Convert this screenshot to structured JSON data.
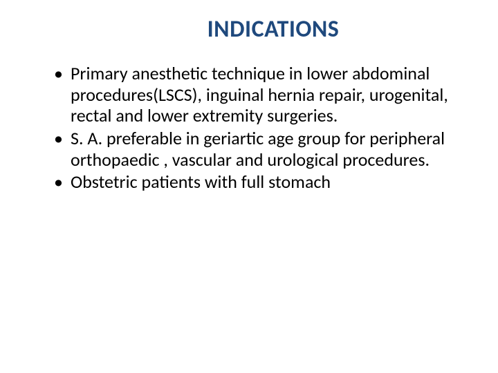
{
  "slide": {
    "title": "INDICATIONS",
    "title_color": "#1f497d",
    "title_fontsize": 34,
    "body_color": "#000000",
    "body_fontsize": 26,
    "background_color": "#ffffff",
    "bullets": [
      "Primary anesthetic technique in lower abdominal procedures(LSCS), inguinal hernia repair, urogenital, rectal and lower extremity surgeries.",
      "S. A. preferable in geriartic age group for peripheral orthopaedic , vascular and urological procedures.",
      "Obstetric patients with full stomach"
    ]
  }
}
